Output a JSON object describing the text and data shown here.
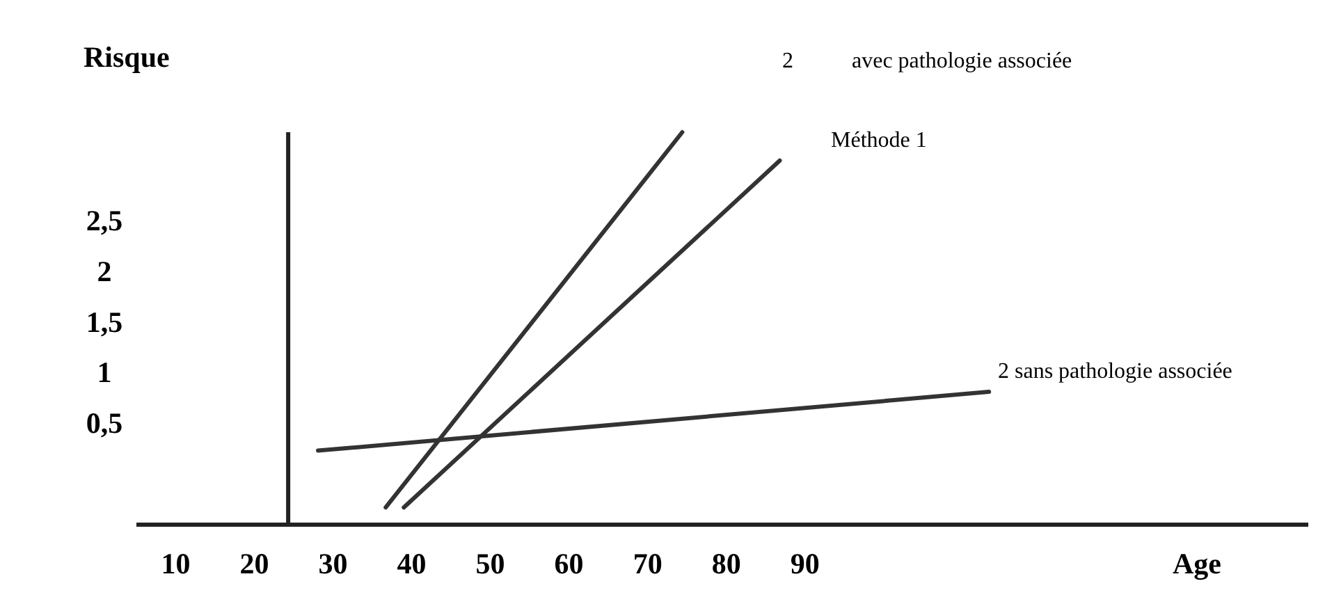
{
  "chart_data": {
    "type": "line",
    "ylabel": "Risque",
    "xlabel": "Age",
    "xlim": [
      5,
      154
    ],
    "ylim": [
      -0.47,
      3.4
    ],
    "xticks": [
      10,
      20,
      30,
      40,
      50,
      60,
      70,
      80,
      90
    ],
    "yticks": [
      {
        "value": 0.5,
        "label": "0,5"
      },
      {
        "value": 1,
        "label": "1"
      },
      {
        "value": 1.5,
        "label": "1,5"
      },
      {
        "value": 2,
        "label": "2"
      },
      {
        "value": 2.5,
        "label": "2,5"
      }
    ],
    "series": [
      {
        "color": "#333333",
        "x": [
          36.7,
          74.4
        ],
        "values": [
          -0.3,
          3.4
        ]
      },
      {
        "color": "#333333",
        "x": [
          39.0,
          86.8
        ],
        "values": [
          -0.3,
          3.12
        ]
      },
      {
        "color": "#333333",
        "x": [
          28.1,
          113.4
        ],
        "values": [
          0.26,
          0.84
        ]
      }
    ],
    "annotations": [
      "2",
      "avec pathologie associée",
      "Méthode 1",
      "2 sans pathologie associée"
    ],
    "ref_lines": [
      {
        "axis": "x",
        "value": 24.3,
        "color": "#222222"
      }
    ],
    "grid": false,
    "marker": "none",
    "line_style": "solid"
  }
}
